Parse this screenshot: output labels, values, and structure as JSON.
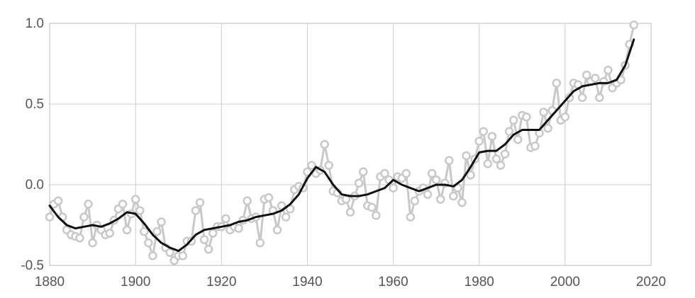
{
  "chart_data": {
    "type": "line",
    "title": "",
    "xlabel": "",
    "ylabel": "",
    "xlim": [
      1880,
      2020
    ],
    "ylim": [
      -0.5,
      1.0
    ],
    "grid": true,
    "x_ticks": [
      1880,
      1900,
      1920,
      1940,
      1960,
      1980,
      2000,
      2020
    ],
    "x_tick_labels": [
      "1880",
      "1900",
      "1920",
      "1940",
      "1960",
      "1980",
      "2000",
      "2020"
    ],
    "y_ticks": [
      -0.5,
      0.0,
      0.5,
      1.0
    ],
    "y_tick_labels": [
      "-0.5",
      "0.0",
      "0.5",
      "1.0"
    ],
    "colors": {
      "annual": "#c8c8c8",
      "smoothed": "#111111"
    },
    "series": [
      {
        "style": "annual",
        "x": [
          1880,
          1881,
          1882,
          1883,
          1884,
          1885,
          1886,
          1887,
          1888,
          1889,
          1890,
          1891,
          1892,
          1893,
          1894,
          1895,
          1896,
          1897,
          1898,
          1899,
          1900,
          1901,
          1902,
          1903,
          1904,
          1905,
          1906,
          1907,
          1908,
          1909,
          1910,
          1911,
          1912,
          1913,
          1914,
          1915,
          1916,
          1917,
          1918,
          1919,
          1920,
          1921,
          1922,
          1923,
          1924,
          1925,
          1926,
          1927,
          1928,
          1929,
          1930,
          1931,
          1932,
          1933,
          1934,
          1935,
          1936,
          1937,
          1938,
          1939,
          1940,
          1941,
          1942,
          1943,
          1944,
          1945,
          1946,
          1947,
          1948,
          1949,
          1950,
          1951,
          1952,
          1953,
          1954,
          1955,
          1956,
          1957,
          1958,
          1959,
          1960,
          1961,
          1962,
          1963,
          1964,
          1965,
          1966,
          1967,
          1968,
          1969,
          1970,
          1971,
          1972,
          1973,
          1974,
          1975,
          1976,
          1977,
          1978,
          1979,
          1980,
          1981,
          1982,
          1983,
          1984,
          1985,
          1986,
          1987,
          1988,
          1989,
          1990,
          1991,
          1992,
          1993,
          1994,
          1995,
          1996,
          1997,
          1998,
          1999,
          2000,
          2001,
          2002,
          2003,
          2004,
          2005,
          2006,
          2007,
          2008,
          2009,
          2010,
          2011,
          2012,
          2013,
          2014,
          2015,
          2016
        ],
        "values": [
          -0.2,
          -0.12,
          -0.1,
          -0.2,
          -0.28,
          -0.31,
          -0.32,
          -0.33,
          -0.2,
          -0.12,
          -0.36,
          -0.25,
          -0.28,
          -0.31,
          -0.3,
          -0.22,
          -0.15,
          -0.12,
          -0.28,
          -0.18,
          -0.09,
          -0.16,
          -0.29,
          -0.36,
          -0.44,
          -0.29,
          -0.23,
          -0.39,
          -0.42,
          -0.47,
          -0.44,
          -0.44,
          -0.35,
          -0.35,
          -0.16,
          -0.11,
          -0.34,
          -0.4,
          -0.3,
          -0.26,
          -0.26,
          -0.21,
          -0.28,
          -0.26,
          -0.27,
          -0.22,
          -0.1,
          -0.21,
          -0.2,
          -0.36,
          -0.09,
          -0.08,
          -0.16,
          -0.28,
          -0.13,
          -0.2,
          -0.15,
          -0.03,
          -0.01,
          -0.02,
          0.08,
          0.12,
          0.07,
          0.09,
          0.25,
          0.12,
          -0.04,
          -0.05,
          -0.1,
          -0.09,
          -0.17,
          -0.07,
          0.01,
          0.08,
          -0.13,
          -0.14,
          -0.19,
          0.05,
          0.07,
          0.03,
          -0.02,
          0.05,
          0.04,
          0.07,
          -0.2,
          -0.1,
          -0.04,
          -0.02,
          -0.06,
          0.07,
          0.03,
          -0.09,
          0.01,
          0.15,
          -0.07,
          -0.02,
          -0.11,
          0.18,
          0.06,
          0.16,
          0.27,
          0.33,
          0.13,
          0.3,
          0.16,
          0.12,
          0.19,
          0.33,
          0.4,
          0.28,
          0.43,
          0.42,
          0.23,
          0.24,
          0.32,
          0.45,
          0.35,
          0.46,
          0.63,
          0.4,
          0.42,
          0.54,
          0.63,
          0.62,
          0.54,
          0.68,
          0.64,
          0.66,
          0.54,
          0.64,
          0.71,
          0.6,
          0.63,
          0.65,
          0.74,
          0.87,
          0.99
        ]
      },
      {
        "style": "smoothed",
        "x": [
          1880,
          1882,
          1884,
          1886,
          1888,
          1890,
          1892,
          1894,
          1896,
          1898,
          1900,
          1902,
          1904,
          1906,
          1908,
          1910,
          1912,
          1914,
          1916,
          1918,
          1920,
          1922,
          1924,
          1926,
          1928,
          1930,
          1932,
          1934,
          1936,
          1938,
          1940,
          1942,
          1944,
          1946,
          1948,
          1950,
          1952,
          1954,
          1956,
          1958,
          1960,
          1962,
          1964,
          1966,
          1968,
          1970,
          1972,
          1974,
          1976,
          1978,
          1980,
          1982,
          1984,
          1986,
          1988,
          1990,
          1992,
          1994,
          1996,
          1998,
          2000,
          2002,
          2004,
          2006,
          2008,
          2010,
          2012,
          2014,
          2016
        ],
        "values": [
          -0.13,
          -0.2,
          -0.25,
          -0.27,
          -0.26,
          -0.25,
          -0.26,
          -0.24,
          -0.21,
          -0.17,
          -0.18,
          -0.24,
          -0.31,
          -0.36,
          -0.39,
          -0.41,
          -0.37,
          -0.31,
          -0.28,
          -0.27,
          -0.26,
          -0.25,
          -0.23,
          -0.22,
          -0.2,
          -0.19,
          -0.18,
          -0.16,
          -0.12,
          -0.06,
          0.04,
          0.11,
          0.08,
          0.0,
          -0.06,
          -0.07,
          -0.07,
          -0.06,
          -0.04,
          -0.02,
          0.03,
          0.0,
          -0.02,
          -0.04,
          -0.02,
          0.0,
          0.0,
          -0.01,
          0.03,
          0.11,
          0.2,
          0.21,
          0.21,
          0.25,
          0.31,
          0.34,
          0.34,
          0.34,
          0.4,
          0.46,
          0.52,
          0.58,
          0.61,
          0.62,
          0.63,
          0.63,
          0.65,
          0.74,
          0.9
        ]
      }
    ]
  }
}
